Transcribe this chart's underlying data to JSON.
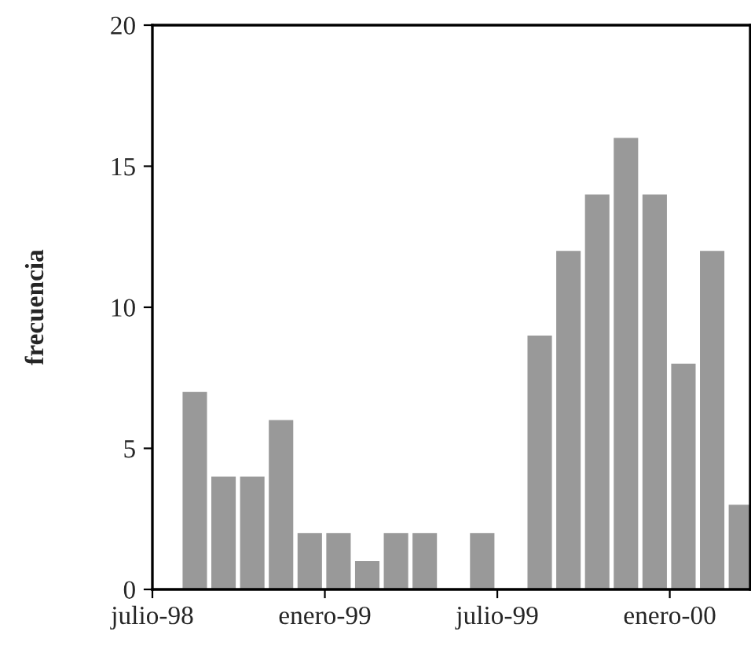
{
  "chart_data": {
    "type": "bar",
    "ylabel": "frecuencia",
    "categories": [
      "julio-98",
      null,
      null,
      null,
      null,
      null,
      "enero-99",
      null,
      null,
      null,
      null,
      null,
      "julio-99",
      null,
      null,
      null,
      null,
      null,
      "enero-00",
      null,
      null
    ],
    "values": [
      0,
      7,
      4,
      4,
      6,
      2,
      2,
      1,
      2,
      2,
      0,
      2,
      0,
      9,
      12,
      14,
      16,
      14,
      8,
      12,
      3
    ],
    "color": "#999999",
    "ylim": [
      0,
      20
    ],
    "yticks": [
      0,
      5,
      10,
      15,
      20
    ],
    "grid": false,
    "legend": false
  }
}
